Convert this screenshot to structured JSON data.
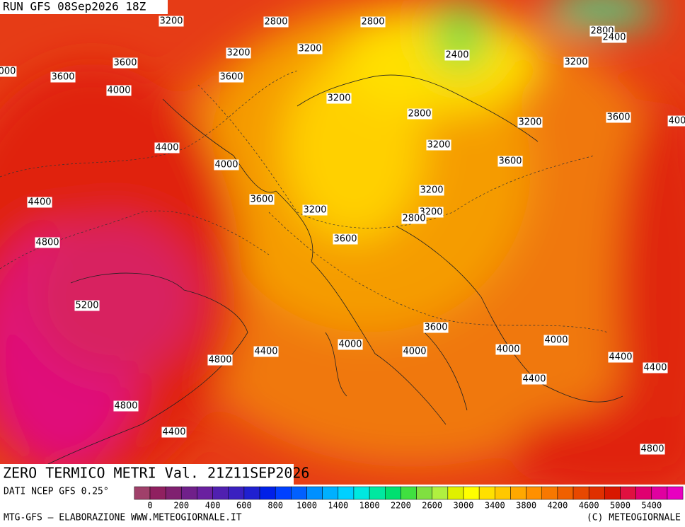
{
  "header": {
    "run": "RUN GFS 08Sep2026 18Z"
  },
  "map": {
    "contour_labels": [
      "3200",
      "2800",
      "2800",
      "3200",
      "3200",
      "3600",
      "3600",
      "3600",
      "4000",
      "2400",
      "2800",
      "2400",
      "3200",
      "3200",
      "2800",
      "3200",
      "3600",
      "400",
      "000",
      "4400",
      "4000",
      "3200",
      "3600",
      "3200",
      "3600",
      "3200",
      "3200",
      "2800",
      "4400",
      "4800",
      "3600",
      "5200",
      "3600",
      "4000",
      "4000",
      "4000",
      "4000",
      "4400",
      "4800",
      "4400",
      "4400",
      "4400",
      "4800",
      "4400",
      "4800"
    ]
  },
  "title": "ZERO TERMICO METRI Val. 21Z11SEP2026",
  "colorbar": {
    "labels": [
      "0",
      "200",
      "400",
      "600",
      "800",
      "1000",
      "1400",
      "1800",
      "2200",
      "2600",
      "3000",
      "3400",
      "3800",
      "4200",
      "4600",
      "5000",
      "5400"
    ]
  },
  "footer": {
    "source": "DATI NCEP GFS 0.25°",
    "credit": "MTG-GFS — ELABORAZIONE WWW.METEOGIORNALE.IT",
    "copyright": "(C) METEOGIORNALE"
  }
}
